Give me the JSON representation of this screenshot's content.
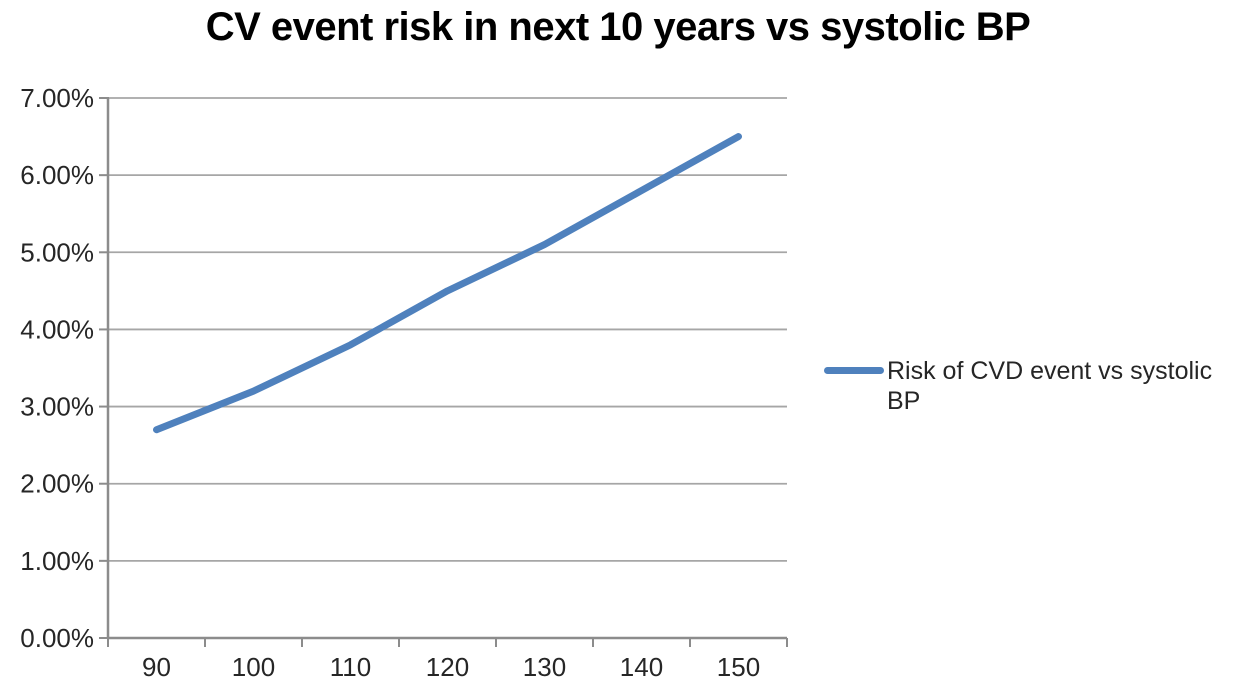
{
  "chart_data": {
    "type": "line",
    "title": "CV event risk in next 10 years vs systolic BP",
    "categories": [
      90,
      100,
      110,
      120,
      130,
      140,
      150
    ],
    "series": [
      {
        "name": "Risk of CVD event vs systolic BP",
        "color": "#4F81BD",
        "values": [
          2.7,
          3.2,
          3.8,
          4.5,
          5.1,
          5.8,
          6.5
        ]
      }
    ],
    "xlabel": "",
    "ylabel": "",
    "ylim": [
      0,
      7
    ],
    "y_ticks": [
      0,
      1,
      2,
      3,
      4,
      5,
      6,
      7
    ],
    "y_tick_labels": [
      "0.00%",
      "1.00%",
      "2.00%",
      "3.00%",
      "4.00%",
      "5.00%",
      "6.00%",
      "7.00%"
    ],
    "grid": true,
    "legend_position": "right",
    "colors": {
      "gridline": "#A6A6A6",
      "axis": "#8C8C8C",
      "tick_text": "#262626",
      "title_text": "#000000",
      "background": "#FFFFFF"
    }
  }
}
